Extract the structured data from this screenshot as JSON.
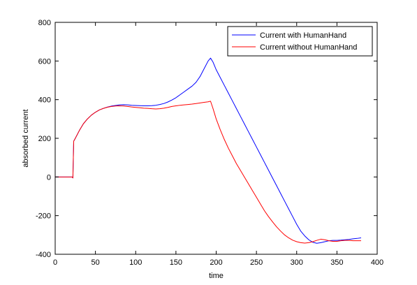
{
  "chart_data": {
    "type": "line",
    "title": "",
    "xlabel": "time",
    "ylabel": "absorbed current",
    "xlim": [
      0,
      400
    ],
    "ylim": [
      -400,
      800
    ],
    "xticks": [
      0,
      50,
      100,
      150,
      200,
      250,
      300,
      350,
      400
    ],
    "yticks": [
      -400,
      -200,
      0,
      200,
      400,
      600,
      800
    ],
    "grid": false,
    "legend_position": "top-right",
    "series": [
      {
        "name": "Current with HumanHand",
        "color": "#0000ff",
        "x": [
          0,
          20,
          21,
          22,
          23,
          25,
          30,
          35,
          40,
          45,
          50,
          55,
          60,
          65,
          70,
          75,
          80,
          85,
          90,
          95,
          100,
          105,
          110,
          115,
          120,
          125,
          130,
          135,
          140,
          145,
          150,
          155,
          160,
          165,
          170,
          175,
          180,
          185,
          190,
          193,
          196,
          200,
          205,
          210,
          215,
          220,
          225,
          230,
          235,
          240,
          245,
          250,
          255,
          260,
          265,
          270,
          275,
          280,
          285,
          290,
          295,
          300,
          305,
          310,
          315,
          320,
          325,
          330,
          335,
          340,
          345,
          350,
          355,
          360,
          365,
          370,
          375,
          380
        ],
        "y": [
          0,
          0,
          0,
          -5,
          185,
          200,
          240,
          275,
          300,
          320,
          335,
          347,
          355,
          362,
          367,
          370,
          373,
          374,
          373,
          371,
          370,
          369,
          368,
          368,
          369,
          371,
          375,
          380,
          388,
          398,
          410,
          425,
          440,
          455,
          470,
          490,
          520,
          560,
          600,
          615,
          595,
          555,
          515,
          475,
          435,
          395,
          355,
          315,
          275,
          235,
          195,
          155,
          115,
          75,
          35,
          -5,
          -45,
          -85,
          -125,
          -165,
          -205,
          -245,
          -280,
          -305,
          -325,
          -338,
          -343,
          -340,
          -335,
          -330,
          -328,
          -328,
          -327,
          -325,
          -323,
          -320,
          -318,
          -315
        ]
      },
      {
        "name": "Current without HumanHand",
        "color": "#ff0000",
        "x": [
          0,
          20,
          21,
          22,
          23,
          25,
          30,
          35,
          40,
          45,
          50,
          55,
          60,
          65,
          70,
          75,
          80,
          85,
          90,
          95,
          100,
          105,
          110,
          115,
          120,
          125,
          130,
          135,
          140,
          145,
          150,
          155,
          160,
          165,
          170,
          175,
          180,
          185,
          190,
          193,
          196,
          200,
          205,
          210,
          215,
          220,
          225,
          230,
          235,
          240,
          245,
          250,
          255,
          260,
          265,
          270,
          275,
          280,
          285,
          290,
          295,
          300,
          305,
          310,
          315,
          320,
          325,
          330,
          335,
          340,
          345,
          350,
          355,
          360,
          365,
          370,
          375,
          380
        ],
        "y": [
          0,
          0,
          0,
          -5,
          185,
          200,
          240,
          275,
          300,
          320,
          335,
          347,
          355,
          361,
          365,
          367,
          368,
          367,
          365,
          362,
          360,
          358,
          356,
          355,
          353,
          352,
          353,
          356,
          360,
          365,
          368,
          371,
          373,
          375,
          377,
          380,
          383,
          386,
          389,
          392,
          355,
          300,
          245,
          195,
          150,
          110,
          70,
          35,
          0,
          -35,
          -70,
          -105,
          -140,
          -175,
          -205,
          -232,
          -258,
          -280,
          -300,
          -315,
          -327,
          -335,
          -340,
          -342,
          -340,
          -335,
          -328,
          -322,
          -325,
          -330,
          -333,
          -333,
          -330,
          -328,
          -328,
          -330,
          -330,
          -330
        ]
      }
    ]
  }
}
